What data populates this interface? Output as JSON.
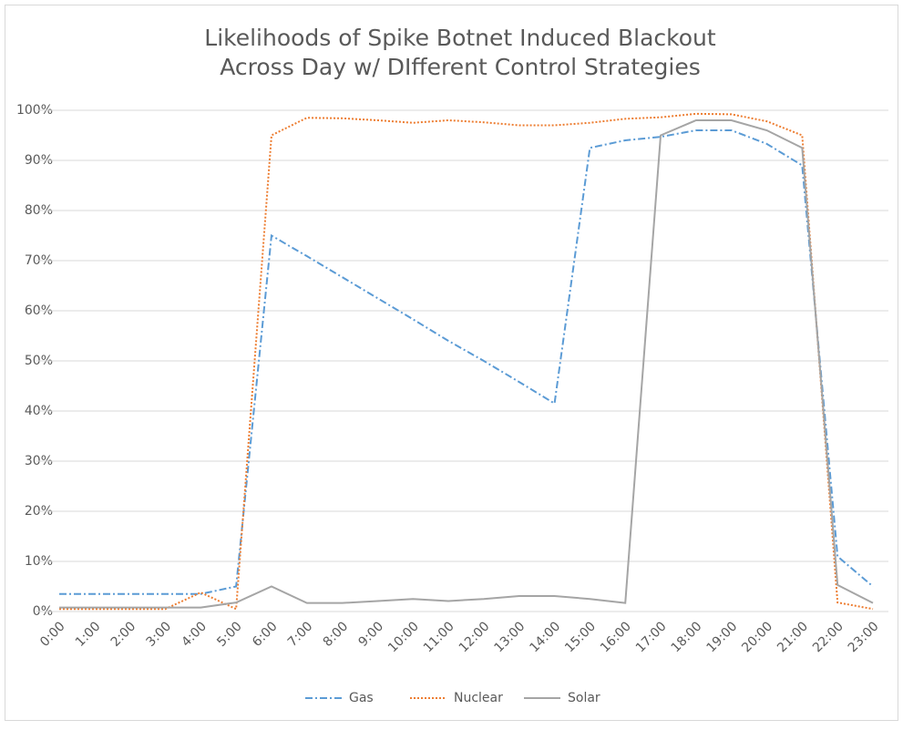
{
  "chart_data": {
    "type": "line",
    "title": [
      "Likelihoods of Spike Botnet Induced Blackout",
      "Across Day w/ DIfferent Control Strategies"
    ],
    "categories": [
      "0:00",
      "1:00",
      "2:00",
      "3:00",
      "4:00",
      "5:00",
      "6:00",
      "7:00",
      "8:00",
      "9:00",
      "10:00",
      "11:00",
      "12:00",
      "13:00",
      "14:00",
      "15:00",
      "16:00",
      "17:00",
      "18:00",
      "19:00",
      "20:00",
      "21:00",
      "22:00",
      "23:00"
    ],
    "series": [
      {
        "name": "Gas",
        "color": "#5b9bd5",
        "dash": "dashdot",
        "values": [
          3.5,
          3.5,
          3.5,
          3.5,
          3.5,
          5,
          75,
          70.9,
          66.7,
          62.5,
          58.3,
          54,
          50,
          45.8,
          41.5,
          92.5,
          94,
          94.7,
          96,
          96,
          93.3,
          89,
          11,
          5
        ]
      },
      {
        "name": "Nuclear",
        "color": "#ed7d31",
        "dash": "dotted",
        "values": [
          0.5,
          0.5,
          0.5,
          0.5,
          3.8,
          0.5,
          95,
          98.5,
          98.4,
          98,
          97.5,
          98,
          97.6,
          97,
          97,
          97.5,
          98.3,
          98.6,
          99.3,
          99.2,
          97.8,
          95,
          1.8,
          0.5
        ]
      },
      {
        "name": "Solar",
        "color": "#a5a5a5",
        "dash": "solid",
        "values": [
          0.8,
          0.8,
          0.8,
          0.8,
          0.8,
          1.8,
          5,
          1.7,
          1.7,
          2.1,
          2.5,
          2.1,
          2.5,
          3.1,
          3.1,
          2.5,
          1.7,
          95,
          98,
          98,
          96,
          92.5,
          5.3,
          1.7
        ]
      }
    ],
    "ylim": [
      0,
      100
    ],
    "yticks": [
      {
        "value": 0,
        "label": "0%"
      },
      {
        "value": 10,
        "label": "10%"
      },
      {
        "value": 20,
        "label": "20%"
      },
      {
        "value": 30,
        "label": "30%"
      },
      {
        "value": 40,
        "label": "40%"
      },
      {
        "value": 50,
        "label": "50%"
      },
      {
        "value": 60,
        "label": "60%"
      },
      {
        "value": 70,
        "label": "70%"
      },
      {
        "value": 80,
        "label": "80%"
      },
      {
        "value": 90,
        "label": "90%"
      },
      {
        "value": 100,
        "label": "100%"
      }
    ],
    "grid": true,
    "legend": "bottom"
  }
}
